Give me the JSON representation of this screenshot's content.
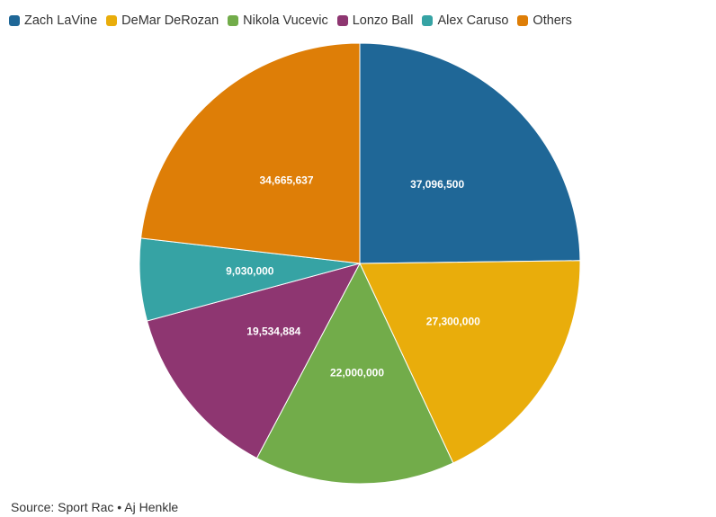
{
  "chart_data": {
    "type": "pie",
    "title": "",
    "legend_position": "top-left",
    "series": [
      {
        "name": "Zach LaVine",
        "value": 37096500,
        "label": "37,096,500",
        "color": "#1f6797"
      },
      {
        "name": "DeMar DeRozan",
        "value": 27300000,
        "label": "27,300,000",
        "color": "#e9ad0b"
      },
      {
        "name": "Nikola Vucevic",
        "value": 22000000,
        "label": "22,000,000",
        "color": "#72ac4a"
      },
      {
        "name": "Lonzo Ball",
        "value": 19534884,
        "label": "19,534,884",
        "color": "#8e3671"
      },
      {
        "name": "Alex Caruso",
        "value": 9030000,
        "label": "9,030,000",
        "color": "#36a3a4"
      },
      {
        "name": "Others",
        "value": 34665637,
        "label": "34,665,637",
        "color": "#de7e07"
      }
    ]
  },
  "source": {
    "text": "Source: Sport Rac • Aj Henkle"
  }
}
